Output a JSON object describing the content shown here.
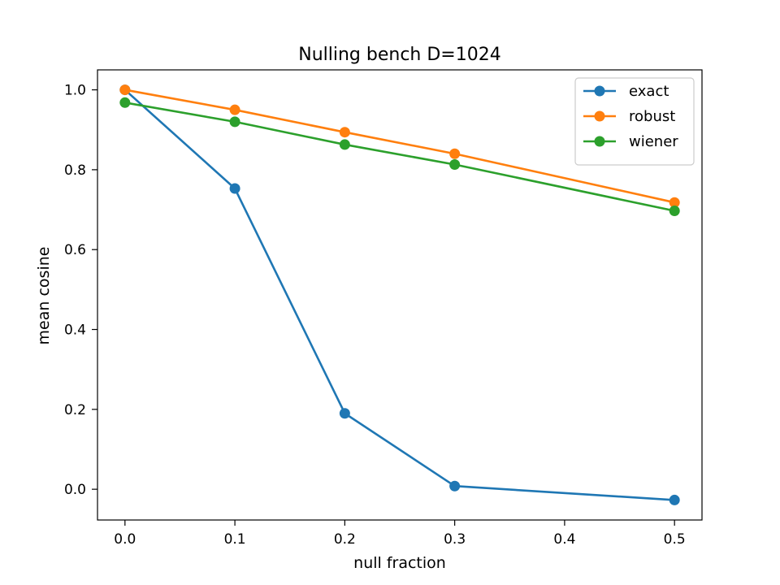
{
  "chart_data": {
    "type": "line",
    "title": "Nulling bench D=1024",
    "xlabel": "null fraction",
    "ylabel": "mean cosine",
    "x": [
      0.0,
      0.1,
      0.2,
      0.3,
      0.4,
      0.5
    ],
    "xlim": [
      -0.025,
      0.525
    ],
    "ylim": [
      -0.077,
      1.05
    ],
    "xticks": [
      {
        "value": 0.0,
        "label": "0.0"
      },
      {
        "value": 0.1,
        "label": "0.1"
      },
      {
        "value": 0.2,
        "label": "0.2"
      },
      {
        "value": 0.3,
        "label": "0.3"
      },
      {
        "value": 0.4,
        "label": "0.4"
      },
      {
        "value": 0.5,
        "label": "0.5"
      }
    ],
    "yticks": [
      {
        "value": 0.0,
        "label": "0.0"
      },
      {
        "value": 0.2,
        "label": "0.2"
      },
      {
        "value": 0.4,
        "label": "0.4"
      },
      {
        "value": 0.6,
        "label": "0.6"
      },
      {
        "value": 0.8,
        "label": "0.8"
      },
      {
        "value": 1.0,
        "label": "1.0"
      }
    ],
    "series": [
      {
        "name": "exact",
        "color": "#1f77b4",
        "points": [
          [
            0.0,
            1.0
          ],
          [
            0.1,
            0.753
          ],
          [
            0.2,
            0.19
          ],
          [
            0.3,
            0.008
          ],
          [
            0.5,
            -0.027
          ]
        ]
      },
      {
        "name": "robust",
        "color": "#ff7f0e",
        "points": [
          [
            0.0,
            1.0
          ],
          [
            0.1,
            0.95
          ],
          [
            0.2,
            0.894
          ],
          [
            0.3,
            0.84
          ],
          [
            0.5,
            0.718
          ]
        ]
      },
      {
        "name": "wiener",
        "color": "#2ca02c",
        "points": [
          [
            0.0,
            0.968
          ],
          [
            0.1,
            0.92
          ],
          [
            0.2,
            0.863
          ],
          [
            0.3,
            0.813
          ],
          [
            0.5,
            0.697
          ]
        ]
      }
    ],
    "grid": false,
    "legend": "top-right"
  }
}
